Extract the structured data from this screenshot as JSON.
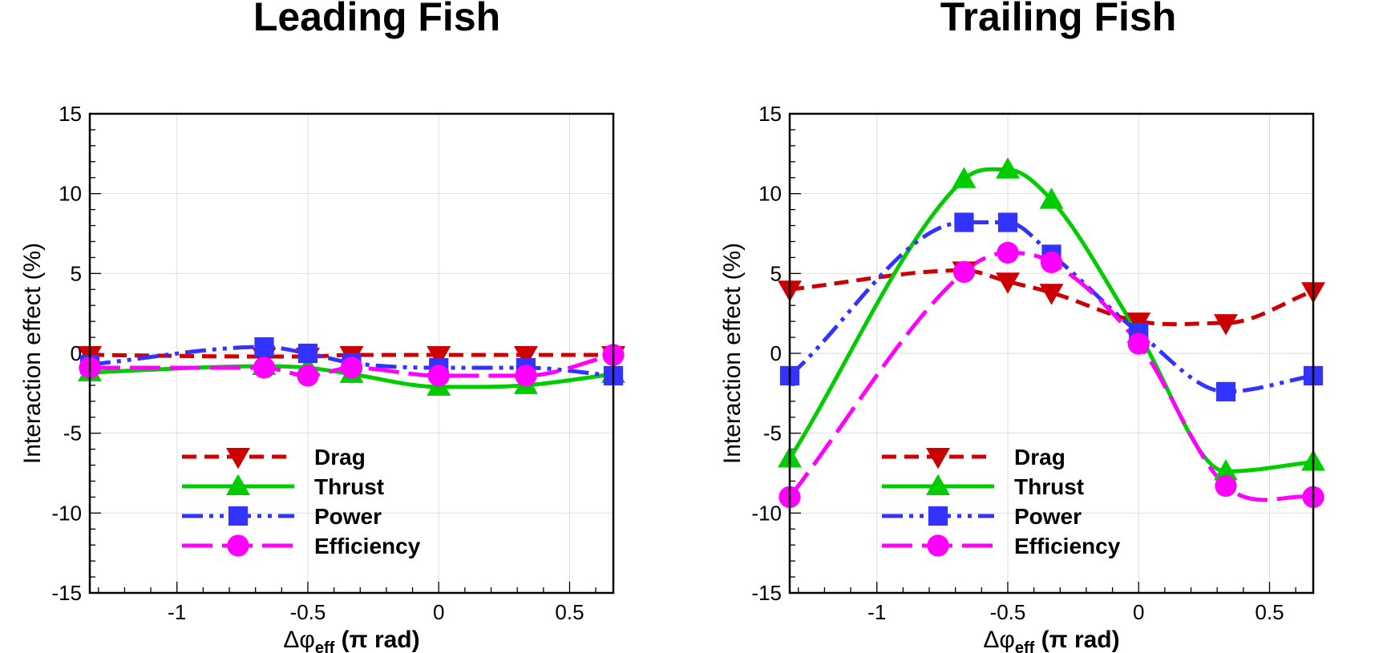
{
  "chart_data": [
    {
      "type": "line",
      "title": "Leading Fish",
      "xlabel": "Δφeff (π rad)",
      "xlabel_parts": {
        "symbol": "Δφ",
        "subscript": "eff",
        "unit": " (π rad)"
      },
      "ylabel": "Interaction effect  (%)",
      "xlim": [
        -1.333,
        0.667
      ],
      "ylim": [
        -15,
        15
      ],
      "xticks": [
        -1,
        -0.5,
        0,
        0.5
      ],
      "xtick_labels": [
        "-1",
        "-0.5",
        "0",
        "0.5"
      ],
      "yticks": [
        15,
        10,
        5,
        0,
        -5,
        -10,
        -15
      ],
      "ytick_labels": [
        "15",
        "10",
        "5",
        "0",
        "-5",
        "-10",
        "-15"
      ],
      "grid": true,
      "legend_position": "bottom-left",
      "x": [
        -1.333,
        -0.667,
        -0.5,
        -0.333,
        0,
        0.333,
        0.667
      ],
      "series": [
        {
          "name": "Drag",
          "color": "#cc0000",
          "marker": "triangle-down",
          "line": "dash",
          "values": [
            -0.1,
            -0.2,
            -0.2,
            -0.1,
            -0.1,
            -0.1,
            -0.1
          ]
        },
        {
          "name": "Thrust",
          "color": "#00cc00",
          "marker": "triangle-up",
          "line": "solid",
          "values": [
            -1.2,
            -0.8,
            -0.9,
            -1.3,
            -2.1,
            -2.0,
            -1.3
          ]
        },
        {
          "name": "Power",
          "color": "#3333ff",
          "marker": "square",
          "line": "dash-dot-dot",
          "values": [
            -0.7,
            0.4,
            0.0,
            -0.6,
            -0.9,
            -0.9,
            -1.4
          ]
        },
        {
          "name": "Efficiency",
          "color": "#ff00ff",
          "marker": "circle",
          "line": "long-dash",
          "values": [
            -0.9,
            -0.9,
            -1.4,
            -0.9,
            -1.4,
            -1.4,
            -0.1
          ]
        }
      ]
    },
    {
      "type": "line",
      "title": "Trailing Fish",
      "xlabel": "Δφeff (π rad)",
      "xlabel_parts": {
        "symbol": "Δφ",
        "subscript": "eff",
        "unit": " (π rad)"
      },
      "ylabel": "Interaction effect  (%)",
      "xlim": [
        -1.333,
        0.667
      ],
      "ylim": [
        -15,
        15
      ],
      "xticks": [
        -1,
        -0.5,
        0,
        0.5
      ],
      "xtick_labels": [
        "-1",
        "-0.5",
        "0",
        "0.5"
      ],
      "yticks": [
        15,
        10,
        5,
        0,
        -5,
        -10,
        -15
      ],
      "ytick_labels": [
        "15",
        "10",
        "5",
        "0",
        "-5",
        "-10",
        "-15"
      ],
      "grid": true,
      "legend_position": "bottom-left",
      "x": [
        -1.333,
        -0.667,
        -0.5,
        -0.333,
        0,
        0.333,
        0.667
      ],
      "series": [
        {
          "name": "Drag",
          "color": "#cc0000",
          "marker": "triangle-down",
          "line": "dash",
          "values": [
            4.0,
            5.2,
            4.5,
            3.8,
            2.0,
            1.9,
            3.9
          ]
        },
        {
          "name": "Thrust",
          "color": "#00cc00",
          "marker": "triangle-up",
          "line": "solid",
          "values": [
            -6.6,
            10.9,
            11.5,
            9.6,
            1.2,
            -7.4,
            -6.8
          ]
        },
        {
          "name": "Power",
          "color": "#3333ff",
          "marker": "square",
          "line": "dash-dot-dot",
          "values": [
            -1.4,
            8.2,
            8.2,
            6.2,
            1.3,
            -2.4,
            -1.4
          ]
        },
        {
          "name": "Efficiency",
          "color": "#ff00ff",
          "marker": "circle",
          "line": "long-dash",
          "values": [
            -9.0,
            5.1,
            6.3,
            5.7,
            0.6,
            -8.3,
            -9.0
          ]
        }
      ]
    }
  ]
}
